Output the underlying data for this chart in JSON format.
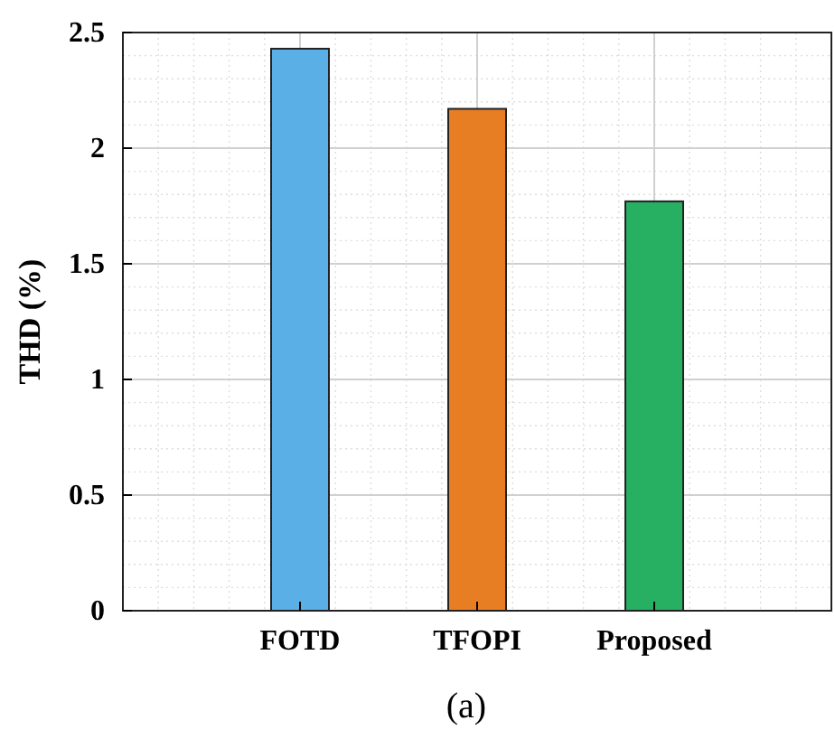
{
  "chart_data": {
    "type": "bar",
    "title": "(a)",
    "ylabel": "THD (%)",
    "categories": [
      "FOTD",
      "TFOPI",
      "Proposed"
    ],
    "values": [
      2.43,
      2.17,
      1.77
    ],
    "colors": [
      "#5aafe6",
      "#e87e24",
      "#27b062"
    ],
    "ylim": [
      0,
      2.5
    ],
    "yticks": [
      0,
      0.5,
      1,
      {
        "value": 1.5,
        "label": "1.5"
      },
      2,
      2.5
    ],
    "grid": true
  }
}
